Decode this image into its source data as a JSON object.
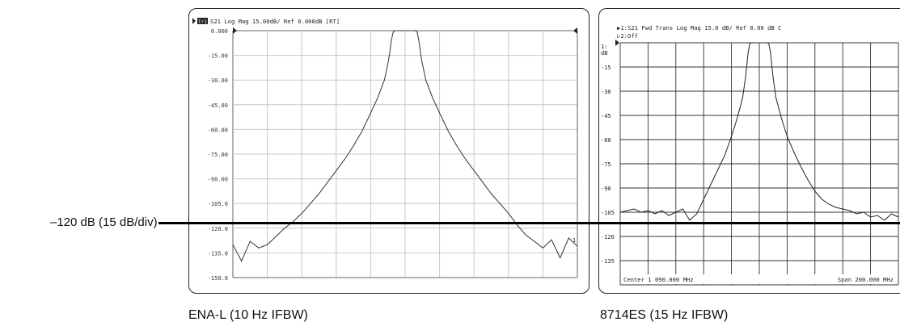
{
  "reference_line": {
    "label": "–120 dB (15 dB/div)"
  },
  "chart_data": [
    {
      "type": "line",
      "instrument": "ENA-L (10 Hz IFBW)",
      "header": {
        "trace_tag": "Tr1",
        "text": "S21 Log Mag 15.00dB/ Ref 0.000dB [RT]"
      },
      "y_tick_labels": [
        "0.000",
        "-15.00",
        "-30.00",
        "-45.00",
        "-60.00",
        "-75.00",
        "-90.00",
        "-105.0",
        "-120.0",
        "-135.0",
        "-150.0"
      ],
      "ylim": [
        -150,
        0
      ],
      "xlim": [
        -100,
        100
      ],
      "xunit": "MHz offset from center",
      "grid": true,
      "trace_end_label": "1",
      "series": [
        {
          "x": [
            -100,
            -95,
            -90,
            -85,
            -80,
            -75,
            -70,
            -65,
            -60,
            -55,
            -50,
            -45,
            -40,
            -35,
            -30,
            -25,
            -20,
            -16,
            -12,
            -10,
            -9,
            -8,
            -7,
            -6,
            -4,
            0,
            4,
            6,
            7,
            8,
            9,
            10,
            12,
            16,
            20,
            25,
            30,
            35,
            40,
            45,
            50,
            55,
            60,
            65,
            70,
            75,
            80,
            85,
            90,
            95,
            100
          ],
          "y": [
            -130,
            -140,
            -128,
            -132,
            -130,
            -125,
            -120,
            -116,
            -111,
            -105,
            -99,
            -92,
            -85,
            -78,
            -70,
            -61,
            -50,
            -41,
            -30,
            -20,
            -14,
            -6,
            -1,
            0,
            0,
            0,
            0,
            0,
            -1,
            -6,
            -14,
            -20,
            -30,
            -41,
            -50,
            -61,
            -70,
            -78,
            -85,
            -92,
            -99,
            -105,
            -111,
            -118,
            -124,
            -128,
            -132,
            -127,
            -138,
            -126,
            -131
          ]
        }
      ]
    },
    {
      "type": "line",
      "instrument": "8714ES (15 Hz IFBW)",
      "header": {
        "line1": "▶1:S21 Fwd Trans    Log Mag  15.0 dB/ Ref   0.00 dB  C",
        "line2": "▷2:Off"
      },
      "marker_label": "1:",
      "yunit_label": "dB",
      "y_tick_labels": [
        "-15",
        "-30",
        "-45",
        "-60",
        "-75",
        "-90",
        "-105",
        "-120",
        "-135"
      ],
      "ylim": [
        -150,
        0
      ],
      "xlim": [
        -100,
        100
      ],
      "grid": true,
      "footer_left": "Center 1 090.000 MHz",
      "footer_right": "Span 200.000 MHz",
      "series": [
        {
          "x": [
            -100,
            -95,
            -90,
            -85,
            -80,
            -75,
            -70,
            -65,
            -60,
            -55,
            -50,
            -45,
            -40,
            -35,
            -30,
            -25,
            -20,
            -16,
            -12,
            -10,
            -9,
            -8,
            -7,
            -6,
            -4,
            0,
            4,
            6,
            7,
            8,
            9,
            10,
            12,
            16,
            20,
            25,
            30,
            35,
            40,
            45,
            50,
            55,
            60,
            65,
            70,
            75,
            80,
            85,
            90,
            95,
            100
          ],
          "y": [
            -105,
            -104,
            -103,
            -105,
            -104,
            -106,
            -104,
            -107,
            -105,
            -103,
            -110,
            -106,
            -97,
            -88,
            -79,
            -70,
            -58,
            -47,
            -34,
            -22,
            -14,
            -6,
            -1,
            0,
            0,
            0,
            0,
            0,
            -1,
            -6,
            -14,
            -22,
            -34,
            -47,
            -58,
            -68,
            -77,
            -85,
            -92,
            -97,
            -100,
            -102,
            -103,
            -104,
            -106,
            -105,
            -108,
            -107,
            -110,
            -106,
            -108
          ]
        }
      ]
    }
  ]
}
